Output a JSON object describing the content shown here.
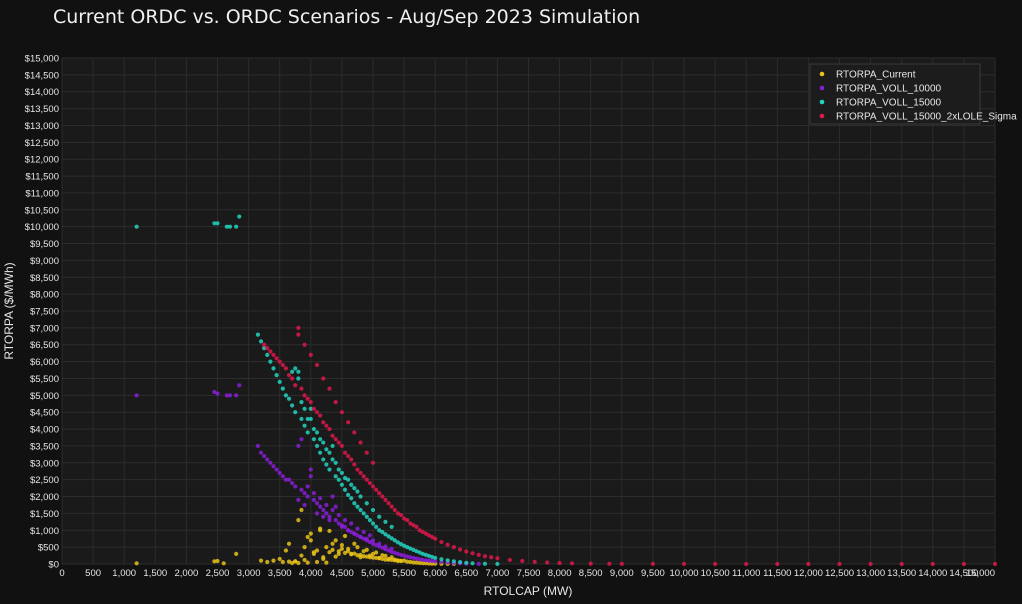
{
  "chart_data": {
    "type": "scatter",
    "title": "Current ORDC vs. ORDC Scenarios - Aug/Sep 2023 Simulation",
    "xlabel": "RTOLCAP (MW)",
    "ylabel": "RTORPA ($/MWh)",
    "xlim": [
      0,
      15000
    ],
    "ylim": [
      0,
      15000
    ],
    "x_ticks": [
      0,
      500,
      1000,
      1500,
      2000,
      2500,
      3000,
      3500,
      4000,
      4500,
      5000,
      5500,
      6000,
      6500,
      7000,
      7500,
      8000,
      8500,
      9000,
      9500,
      10000,
      10500,
      11000,
      11500,
      12000,
      12500,
      13000,
      13500,
      14000,
      14500,
      15000
    ],
    "x_tick_labels": [
      "0",
      "500",
      "1,000",
      "1,500",
      "2,000",
      "2,500",
      "3,000",
      "3,500",
      "4,000",
      "4,500",
      "5,000",
      "5,500",
      "6,000",
      "6,500",
      "7,000",
      "7,500",
      "8,000",
      "8,500",
      "9,000",
      "9,500",
      "10,000",
      "10,500",
      "11,000",
      "11,500",
      "12,000",
      "12,500",
      "13,000",
      "13,500",
      "14,000",
      "14,500",
      "15,000"
    ],
    "y_ticks": [
      0,
      500,
      1000,
      1500,
      2000,
      2500,
      3000,
      3500,
      4000,
      4500,
      5000,
      5500,
      6000,
      6500,
      7000,
      7500,
      8000,
      8500,
      9000,
      9500,
      10000,
      10500,
      11000,
      11500,
      12000,
      12500,
      13000,
      13500,
      14000,
      14500,
      15000
    ],
    "y_tick_labels": [
      "$0",
      "$500",
      "$1,000",
      "$1,500",
      "$2,000",
      "$2,500",
      "$3,000",
      "$3,500",
      "$4,000",
      "$4,500",
      "$5,000",
      "$5,500",
      "$6,000",
      "$6,500",
      "$7,000",
      "$7,500",
      "$8,000",
      "$8,500",
      "$9,000",
      "$9,500",
      "$10,000",
      "$10,500",
      "$11,000",
      "$11,500",
      "$12,000",
      "$12,500",
      "$13,000",
      "$13,500",
      "$14,000",
      "$14,500",
      "$15,000"
    ],
    "grid": true,
    "legend_position": "top-right",
    "series": [
      {
        "name": "RTORPA_Current",
        "color": "#e8c21a",
        "x": [
          1200,
          2450,
          2500,
          2600,
          2800,
          3200,
          3300,
          3400,
          3500,
          3550,
          3600,
          3650,
          3700,
          3750,
          3800,
          3850,
          3900,
          3950,
          4000,
          4050,
          4100,
          4150,
          4200,
          4250,
          4300,
          4350,
          4400,
          4450,
          4500,
          4550,
          4600,
          4650,
          4700,
          4750,
          4800,
          4850,
          4900,
          4950,
          5000,
          5050,
          5100,
          5150,
          5200,
          5250,
          5300,
          5350,
          5400,
          5450,
          5500,
          5550,
          5600,
          5650,
          5700,
          5750,
          5800,
          5850,
          5900,
          5950,
          6000,
          6100,
          6200,
          6300,
          3800,
          3900,
          3750,
          3850,
          4100,
          4200,
          4300,
          4400,
          4500,
          4600,
          4700,
          4800,
          4900,
          5000,
          5100,
          5200,
          5300,
          5400,
          4000,
          4250,
          4350,
          4450,
          4550,
          4650,
          4750,
          4850,
          4950,
          5050,
          5150,
          5250,
          5350,
          5450,
          3650,
          3950,
          4050,
          4150
        ],
        "y": [
          20,
          80,
          90,
          20,
          300,
          100,
          60,
          100,
          150,
          60,
          400,
          70,
          30,
          80,
          1300,
          1600,
          500,
          40,
          900,
          300,
          60,
          1050,
          200,
          40,
          980,
          600,
          700,
          300,
          560,
          830,
          450,
          300,
          600,
          500,
          200,
          380,
          420,
          250,
          300,
          340,
          180,
          260,
          240,
          150,
          200,
          130,
          110,
          90,
          100,
          70,
          60,
          45,
          40,
          30,
          25,
          20,
          15,
          12,
          10,
          6,
          4,
          2,
          30,
          120,
          80,
          250,
          400,
          150,
          350,
          220,
          450,
          380,
          310,
          270,
          220,
          190,
          170,
          130,
          120,
          90,
          700,
          500,
          420,
          380,
          330,
          290,
          260,
          230,
          200,
          180,
          150,
          130,
          110,
          95,
          600,
          800,
          350,
          1000
        ]
      },
      {
        "name": "RTORPA_VOLL_10000",
        "color": "#8a1fd9",
        "x": [
          1200,
          2450,
          2500,
          2650,
          2700,
          2800,
          2850,
          3150,
          3200,
          3250,
          3300,
          3350,
          3400,
          3450,
          3500,
          3550,
          3600,
          3650,
          3700,
          3750,
          3800,
          3850,
          3900,
          3950,
          4000,
          4050,
          4100,
          4150,
          4200,
          4250,
          4300,
          4350,
          4400,
          4450,
          4500,
          4550,
          4600,
          4650,
          4700,
          4750,
          4800,
          4850,
          4900,
          4950,
          5000,
          5050,
          5100,
          5150,
          5200,
          5250,
          5300,
          5350,
          5400,
          5450,
          5500,
          5550,
          5600,
          5650,
          5700,
          5750,
          5800,
          5850,
          5900,
          5950,
          6000,
          6100,
          6200,
          6300,
          6400,
          6500,
          6700,
          3800,
          3900,
          4000,
          4100,
          4200,
          4300,
          4400,
          4500,
          4600,
          4700,
          4800,
          4900,
          5000,
          5100,
          5200,
          5300,
          3850,
          3950,
          4050,
          4150,
          4250,
          4350,
          4450,
          4550,
          4650,
          4750,
          4850,
          4950
        ],
        "y": [
          5000,
          5100,
          5050,
          5000,
          5000,
          5000,
          5300,
          3500,
          3300,
          3200,
          3100,
          3000,
          2900,
          2800,
          2700,
          2600,
          2500,
          2500,
          2400,
          2300,
          3500,
          2200,
          2100,
          2000,
          2800,
          1900,
          1800,
          1700,
          1600,
          1500,
          1400,
          2000,
          1300,
          1200,
          1150,
          1100,
          1000,
          950,
          900,
          850,
          800,
          750,
          700,
          650,
          600,
          560,
          520,
          480,
          440,
          400,
          360,
          330,
          300,
          270,
          250,
          220,
          200,
          180,
          160,
          140,
          120,
          110,
          100,
          90,
          80,
          60,
          45,
          30,
          20,
          12,
          5,
          1900,
          1750,
          2600,
          1500,
          1400,
          1300,
          1700,
          1100,
          1000,
          900,
          800,
          750,
          700,
          600,
          520,
          450,
          3700,
          2300,
          2100,
          1950,
          1750,
          1600,
          1450,
          1300,
          1200,
          1050,
          950,
          850
        ]
      },
      {
        "name": "RTORPA_VOLL_15000",
        "color": "#22d4c0",
        "x": [
          1200,
          2450,
          2500,
          2650,
          2700,
          2800,
          2850,
          3150,
          3200,
          3250,
          3300,
          3350,
          3400,
          3450,
          3500,
          3550,
          3600,
          3650,
          3700,
          3750,
          3800,
          3850,
          3900,
          3950,
          4000,
          4050,
          4100,
          4150,
          4200,
          4250,
          4300,
          4350,
          4400,
          4450,
          4500,
          4550,
          4600,
          4650,
          4700,
          4750,
          4800,
          4850,
          4900,
          4950,
          5000,
          5050,
          5100,
          5150,
          5200,
          5250,
          5300,
          5350,
          5400,
          5450,
          5500,
          5550,
          5600,
          5650,
          5700,
          5750,
          5800,
          5850,
          5900,
          5950,
          6000,
          6100,
          6200,
          6300,
          6400,
          6500,
          6600,
          6800,
          7000,
          3700,
          3800,
          3900,
          4000,
          4100,
          4200,
          4300,
          4400,
          4500,
          4600,
          4700,
          4800,
          4900,
          5000,
          5100,
          5200,
          5300,
          3750,
          3850,
          3950,
          4050,
          4150,
          4250,
          4350,
          4450,
          4550,
          4650,
          4750
        ],
        "y": [
          10000,
          10100,
          10100,
          10000,
          10000,
          10000,
          10300,
          6800,
          6600,
          6400,
          6200,
          6000,
          5800,
          5600,
          5400,
          5200,
          5000,
          4900,
          4700,
          4500,
          5700,
          4300,
          4100,
          3900,
          4600,
          3700,
          3500,
          3300,
          3100,
          2950,
          2800,
          3500,
          2600,
          2500,
          2350,
          2200,
          2050,
          1950,
          1800,
          1700,
          1600,
          1500,
          1400,
          1300,
          1200,
          1100,
          1000,
          950,
          880,
          820,
          760,
          700,
          640,
          590,
          540,
          500,
          460,
          420,
          380,
          340,
          300,
          270,
          240,
          210,
          180,
          140,
          110,
          80,
          55,
          35,
          20,
          8,
          2,
          5700,
          5500,
          4600,
          4300,
          3900,
          3600,
          3300,
          3000,
          2700,
          2500,
          2250,
          2000,
          1800,
          1600,
          1400,
          1250,
          1100,
          5800,
          4800,
          4300,
          4000,
          3700,
          3400,
          3100,
          2800,
          2550,
          2350,
          2150
        ]
      },
      {
        "name": "RTORPA_VOLL_15000_2xLOLE_Sigma",
        "color": "#e0174a",
        "x": [
          3250,
          3300,
          3350,
          3400,
          3450,
          3500,
          3550,
          3600,
          3650,
          3700,
          3750,
          3800,
          3850,
          3900,
          3950,
          4000,
          4050,
          4100,
          4150,
          4200,
          4250,
          4300,
          4350,
          4400,
          4450,
          4500,
          4550,
          4600,
          4650,
          4700,
          4750,
          4800,
          4850,
          4900,
          4950,
          5000,
          5050,
          5100,
          5150,
          5200,
          5250,
          5300,
          5350,
          5400,
          5450,
          5500,
          5550,
          5600,
          5650,
          5700,
          5750,
          5800,
          5850,
          5900,
          5950,
          6000,
          6100,
          6200,
          6300,
          6400,
          6500,
          6600,
          6700,
          6800,
          6900,
          7000,
          7200,
          7400,
          7600,
          7800,
          8000,
          8200,
          8500,
          8800,
          9000,
          9500,
          10000,
          10500,
          11000,
          11500,
          12000,
          12500,
          13000,
          13500,
          14000,
          14500,
          15000,
          3800,
          3900,
          4000,
          4100,
          4200,
          4300,
          4400,
          4500,
          4600,
          4700,
          4800,
          4900,
          5000
        ],
        "y": [
          6500,
          6400,
          6300,
          6200,
          6100,
          6000,
          5900,
          5800,
          5600,
          5500,
          5300,
          7000,
          5200,
          5000,
          4900,
          4800,
          4600,
          4500,
          4400,
          4200,
          4100,
          4000,
          3800,
          3700,
          3600,
          3500,
          3300,
          3200,
          3100,
          2950,
          2800,
          2700,
          2600,
          2500,
          2400,
          2300,
          2200,
          2100,
          2000,
          1900,
          1800,
          1700,
          1600,
          1500,
          1450,
          1350,
          1300,
          1200,
          1150,
          1100,
          1000,
          950,
          900,
          850,
          800,
          750,
          650,
          570,
          500,
          430,
          370,
          320,
          270,
          230,
          200,
          170,
          120,
          90,
          65,
          45,
          30,
          20,
          12,
          8,
          5,
          3,
          2,
          1,
          1,
          0,
          0,
          0,
          0,
          0,
          0,
          0,
          0,
          6800,
          6500,
          6200,
          5900,
          5500,
          5200,
          4800,
          4500,
          4200,
          3900,
          3600,
          3300,
          3000
        ]
      }
    ]
  }
}
